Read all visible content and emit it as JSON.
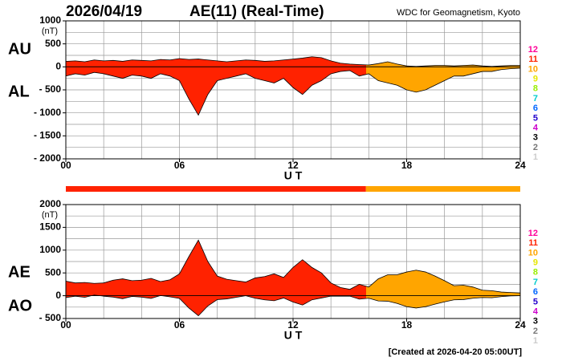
{
  "header": {
    "date": "2026/04/19",
    "title": "AE(11) (Real-Time)",
    "source": "WDC for Geomagnetism, Kyoto",
    "footer": "[Created at 2026-04-20 05:00UT]"
  },
  "count_legend": [
    {
      "label": "12",
      "color": "#ff0099"
    },
    {
      "label": "11",
      "color": "#ff2200"
    },
    {
      "label": "10",
      "color": "#ffa500"
    },
    {
      "label": "9",
      "color": "#e6e600"
    },
    {
      "label": "8",
      "color": "#99ee00"
    },
    {
      "label": "7",
      "color": "#00cccc"
    },
    {
      "label": "6",
      "color": "#0066ff"
    },
    {
      "label": "5",
      "color": "#2200cc"
    },
    {
      "label": "4",
      "color": "#cc00cc"
    },
    {
      "label": "3",
      "color": "#000000"
    },
    {
      "label": "2",
      "color": "#777777"
    },
    {
      "label": "1",
      "color": "#cccccc"
    }
  ],
  "station_bar": {
    "segments": [
      {
        "start": 0,
        "end": 15.85,
        "color": "#ff2200"
      },
      {
        "start": 15.85,
        "end": 24,
        "color": "#ffa500"
      }
    ]
  },
  "chart_data": [
    {
      "type": "area",
      "y_unit": "(nT)",
      "x_label": "U T",
      "x": [
        0,
        0.5,
        1,
        1.5,
        2,
        2.5,
        3,
        3.5,
        4,
        4.5,
        5,
        5.5,
        6,
        6.5,
        7,
        7.5,
        8,
        8.5,
        9,
        9.5,
        10,
        10.5,
        11,
        11.5,
        12,
        12.5,
        13,
        13.5,
        14,
        14.5,
        15,
        15.5,
        16,
        16.5,
        17,
        17.5,
        18,
        18.5,
        19,
        19.5,
        20,
        20.5,
        21,
        21.5,
        22,
        22.5,
        23,
        23.5,
        24
      ],
      "xlim": [
        0,
        24
      ],
      "xticks": [
        {
          "value": 0,
          "label": "00"
        },
        {
          "value": 6,
          "label": "06"
        },
        12,
        18,
        24
      ],
      "xgrid": [
        2,
        4,
        6,
        8,
        10,
        12,
        14,
        16,
        18,
        20,
        22
      ],
      "ylim": [
        -2000,
        1000
      ],
      "yticks": [
        1000,
        500,
        0,
        {
          "value": -500,
          "label": "- 500"
        },
        {
          "value": -1000,
          "label": "- 1000"
        },
        {
          "value": -1500,
          "label": "- 1500"
        },
        {
          "value": -2000,
          "label": "- 2000"
        }
      ],
      "ygrid": [
        750,
        500,
        250,
        0,
        -250,
        -500,
        -750,
        -1000,
        -1250,
        -1500,
        -1750
      ],
      "series": [
        {
          "name": "AU",
          "values": [
            120,
            130,
            110,
            150,
            130,
            140,
            120,
            150,
            140,
            130,
            160,
            150,
            180,
            160,
            170,
            150,
            130,
            110,
            130,
            150,
            140,
            120,
            130,
            150,
            170,
            190,
            220,
            200,
            130,
            80,
            60,
            50,
            40,
            70,
            110,
            60,
            20,
            10,
            20,
            30,
            30,
            20,
            30,
            40,
            20,
            10,
            20,
            30,
            30
          ]
        },
        {
          "name": "AL",
          "values": [
            -200,
            -150,
            -180,
            -120,
            -150,
            -200,
            -250,
            -180,
            -200,
            -250,
            -150,
            -200,
            -300,
            -700,
            -1050,
            -600,
            -300,
            -250,
            -200,
            -150,
            -250,
            -300,
            -350,
            -250,
            -450,
            -600,
            -400,
            -300,
            -150,
            -100,
            -80,
            -200,
            -150,
            -300,
            -350,
            -400,
            -500,
            -550,
            -500,
            -400,
            -300,
            -200,
            -200,
            -150,
            -100,
            -100,
            -60,
            -40,
            -30
          ]
        }
      ]
    },
    {
      "type": "area",
      "y_unit": "(nT)",
      "x_label": "U T",
      "x": [
        0,
        0.5,
        1,
        1.5,
        2,
        2.5,
        3,
        3.5,
        4,
        4.5,
        5,
        5.5,
        6,
        6.5,
        7,
        7.5,
        8,
        8.5,
        9,
        9.5,
        10,
        10.5,
        11,
        11.5,
        12,
        12.5,
        13,
        13.5,
        14,
        14.5,
        15,
        15.5,
        16,
        16.5,
        17,
        17.5,
        18,
        18.5,
        19,
        19.5,
        20,
        20.5,
        21,
        21.5,
        22,
        22.5,
        23,
        23.5,
        24
      ],
      "xlim": [
        0,
        24
      ],
      "xticks": [
        {
          "value": 0,
          "label": "00"
        },
        {
          "value": 6,
          "label": "06"
        },
        12,
        18,
        24
      ],
      "xgrid": [
        2,
        4,
        6,
        8,
        10,
        12,
        14,
        16,
        18,
        20,
        22
      ],
      "ylim": [
        -500,
        2000
      ],
      "yticks": [
        2000,
        1500,
        1000,
        500,
        0,
        {
          "value": -500,
          "label": "- 500"
        }
      ],
      "ygrid": [
        1750,
        1500,
        1250,
        1000,
        750,
        500,
        250,
        0,
        -250
      ],
      "series": [
        {
          "name": "AE",
          "values": [
            320,
            280,
            290,
            270,
            280,
            340,
            370,
            330,
            340,
            380,
            310,
            350,
            480,
            860,
            1220,
            750,
            430,
            360,
            330,
            300,
            390,
            420,
            480,
            400,
            620,
            790,
            620,
            500,
            280,
            180,
            140,
            250,
            190,
            370,
            460,
            460,
            520,
            560,
            520,
            430,
            330,
            220,
            230,
            190,
            120,
            110,
            80,
            70,
            60
          ]
        },
        {
          "name": "AO",
          "values": [
            -40,
            -10,
            -35,
            15,
            -10,
            -30,
            -65,
            -15,
            -30,
            -60,
            5,
            -25,
            -60,
            -270,
            -440,
            -225,
            -85,
            -70,
            -35,
            0,
            -55,
            -90,
            -110,
            -50,
            -140,
            -205,
            -90,
            -50,
            -10,
            -10,
            -10,
            -75,
            -55,
            -115,
            -120,
            -170,
            -240,
            -270,
            -240,
            -185,
            -135,
            -90,
            -85,
            -55,
            -40,
            -45,
            -20,
            -5,
            0
          ]
        }
      ]
    }
  ]
}
